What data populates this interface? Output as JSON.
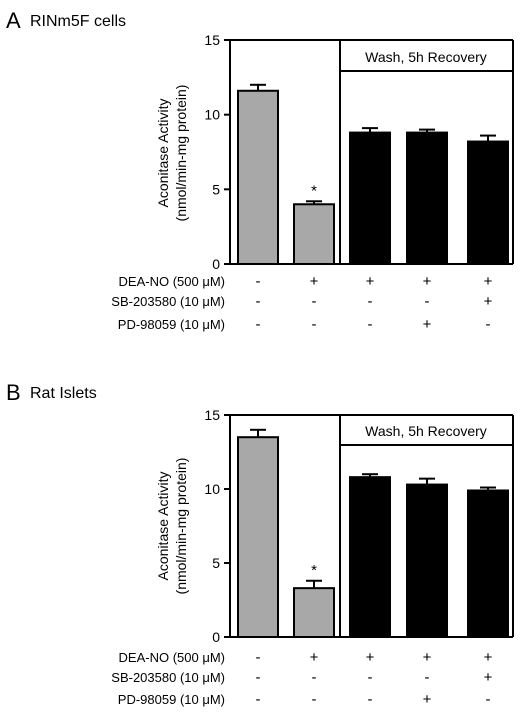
{
  "figure": {
    "colors": {
      "treated_gray": "#a8a8a8",
      "recovery_black": "#000000",
      "axis": "#000000"
    },
    "panels": [
      {
        "letter": "A",
        "title": "RINm5F cells",
        "ylabel_line1": "Aconitase Activity",
        "ylabel_line2": "(nmol/min-mg protein)",
        "box_label": "Wash, 5h Recovery",
        "condition_labels": [
          "DEA-NO (500 μM)",
          "SB-203580 (10 μM)",
          "PD-98059 (10 μM)"
        ],
        "condition_signs": [
          [
            "-",
            "+",
            "+",
            "+",
            "+"
          ],
          [
            "-",
            "-",
            "-",
            "-",
            "+"
          ],
          [
            "-",
            "-",
            "-",
            "+",
            "-"
          ]
        ]
      },
      {
        "letter": "B",
        "title": "Rat Islets",
        "ylabel_line1": "Aconitase Activity",
        "ylabel_line2": "(nmol/min-mg protein)",
        "box_label": "Wash, 5h Recovery",
        "condition_labels": [
          "DEA-NO (500 μM)",
          "SB-203580 (10 μM)",
          "PD-98059 (10 μM)"
        ],
        "condition_signs": [
          [
            "-",
            "+",
            "+",
            "+",
            "+"
          ],
          [
            "-",
            "-",
            "-",
            "-",
            "+"
          ],
          [
            "-",
            "-",
            "-",
            "+",
            "-"
          ]
        ]
      }
    ]
  },
  "chart_data": [
    {
      "type": "bar",
      "title": "RINm5F cells",
      "ylabel": "Aconitase Activity (nmol/min-mg protein)",
      "ylim": [
        0,
        15
      ],
      "yticks": [
        0,
        5,
        10,
        15
      ],
      "categories": [
        "1",
        "2",
        "3",
        "4",
        "5"
      ],
      "values": [
        11.6,
        4.0,
        8.8,
        8.8,
        8.2
      ],
      "errors": [
        0.4,
        0.2,
        0.3,
        0.2,
        0.4
      ],
      "colors": [
        "#a8a8a8",
        "#a8a8a8",
        "#000000",
        "#000000",
        "#000000"
      ],
      "annotations": [
        "",
        "*",
        "",
        "",
        ""
      ]
    },
    {
      "type": "bar",
      "title": "Rat Islets",
      "ylabel": "Aconitase Activity (nmol/min-mg protein)",
      "ylim": [
        0,
        15
      ],
      "yticks": [
        0,
        5,
        10,
        15
      ],
      "categories": [
        "1",
        "2",
        "3",
        "4",
        "5"
      ],
      "values": [
        13.5,
        3.3,
        10.8,
        10.3,
        9.9
      ],
      "errors": [
        0.5,
        0.5,
        0.2,
        0.4,
        0.2
      ],
      "colors": [
        "#a8a8a8",
        "#a8a8a8",
        "#000000",
        "#000000",
        "#000000"
      ],
      "annotations": [
        "",
        "*",
        "",
        "",
        ""
      ]
    }
  ]
}
